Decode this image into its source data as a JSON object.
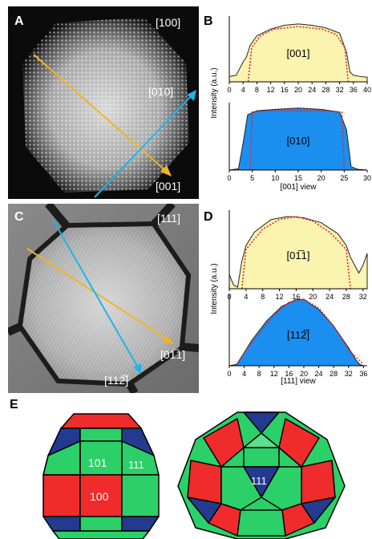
{
  "panels": {
    "A": {
      "letter": "A",
      "zone_axis": "[100]",
      "line_labels": [
        "[010]",
        "[001]"
      ],
      "arrow_colors": {
        "yellow": "#f0b428",
        "blue": "#1fb4ea"
      }
    },
    "C": {
      "letter": "C",
      "zone_axis": "[111]",
      "line_labels": [
        "[01̅1]",
        "[112̅]"
      ]
    },
    "E": {
      "letter": "E",
      "face_labels_left": [
        "101",
        "111",
        "100"
      ],
      "face_labels_right": [
        "111"
      ],
      "colors": {
        "square_face": "#ef2b2b",
        "rhombic_face": "#2bd068",
        "triangle_face": "#233a8f"
      }
    }
  },
  "chart_data": [
    {
      "panel": "B",
      "type": "area",
      "ylabel": "Intensity (a.u.)",
      "xlabel": "[001] view",
      "subplots": [
        {
          "label": "[001]",
          "fill": "#fbf4b0",
          "xticks": [
            0,
            4,
            8,
            12,
            16,
            20,
            24,
            28,
            32,
            36,
            40
          ],
          "xlim": [
            0,
            40
          ],
          "measured_x": [
            0,
            2,
            4,
            5,
            6,
            8,
            12,
            16,
            20,
            24,
            28,
            32,
            34,
            35,
            36,
            38,
            40
          ],
          "measured_y": [
            0.08,
            0.1,
            0.3,
            0.38,
            0.55,
            0.7,
            0.8,
            0.86,
            0.88,
            0.86,
            0.82,
            0.74,
            0.45,
            0.15,
            0.1,
            0.08,
            0.07
          ],
          "model_x": [
            5.5,
            6.5,
            9,
            13,
            20,
            27,
            31,
            33.5,
            34.5
          ],
          "model_y": [
            0.0,
            0.52,
            0.7,
            0.8,
            0.84,
            0.8,
            0.72,
            0.52,
            0.0
          ]
        },
        {
          "label": "[010]",
          "fill": "#1a8ff0",
          "xticks": [
            0,
            5,
            10,
            15,
            20,
            25,
            30
          ],
          "xlim": [
            0,
            30
          ],
          "measured_x": [
            0,
            2,
            3,
            4,
            6,
            10,
            15,
            20,
            24,
            25.5,
            26.5,
            28,
            30
          ],
          "measured_y": [
            0.0,
            0.02,
            0.4,
            0.82,
            0.88,
            0.9,
            0.92,
            0.9,
            0.86,
            0.6,
            0.05,
            0.01,
            0.0
          ],
          "model_x": [
            4.5,
            5,
            10,
            15,
            20,
            24.5,
            25
          ],
          "model_y": [
            0.0,
            0.86,
            0.88,
            0.88,
            0.88,
            0.86,
            0.0
          ]
        }
      ]
    },
    {
      "panel": "D",
      "type": "area",
      "ylabel": "Intensity (a.u.)",
      "xlabel": "[111] view",
      "subplots": [
        {
          "label": "[01̅1]",
          "fill": "#fbf4b0",
          "xticks": [
            0,
            4,
            8,
            12,
            16,
            20,
            24,
            28,
            32
          ],
          "xlim": [
            0,
            33
          ],
          "measured_x": [
            0,
            1,
            2,
            3,
            4,
            6,
            10,
            14,
            18,
            22,
            26,
            28,
            29,
            30,
            31,
            32,
            33
          ],
          "measured_y": [
            0.18,
            0.05,
            0.02,
            0.35,
            0.55,
            0.72,
            0.88,
            0.92,
            0.9,
            0.84,
            0.7,
            0.55,
            0.4,
            0.3,
            0.2,
            0.3,
            0.45
          ],
          "model_x": [
            3,
            4,
            8,
            12,
            16,
            20,
            24,
            28,
            29
          ],
          "model_y": [
            0.0,
            0.5,
            0.76,
            0.88,
            0.92,
            0.86,
            0.72,
            0.5,
            0.0
          ]
        },
        {
          "label": "[112̅]",
          "fill": "#1a8ff0",
          "xticks": [
            0,
            4,
            8,
            12,
            16,
            20,
            24,
            28,
            32,
            36
          ],
          "xlim": [
            0,
            37
          ],
          "measured_x": [
            0,
            2,
            3,
            6,
            10,
            14,
            18,
            20,
            24,
            28,
            32,
            34,
            35,
            36,
            37
          ],
          "measured_y": [
            0.0,
            0.02,
            0.1,
            0.35,
            0.62,
            0.82,
            0.92,
            0.92,
            0.78,
            0.55,
            0.25,
            0.08,
            0.02,
            0.0,
            0.0
          ],
          "model_x": [
            2,
            4,
            8,
            12,
            16,
            20,
            24,
            28,
            32,
            36
          ],
          "model_y": [
            0.02,
            0.18,
            0.45,
            0.7,
            0.88,
            0.92,
            0.8,
            0.55,
            0.22,
            0.02
          ]
        }
      ]
    }
  ]
}
